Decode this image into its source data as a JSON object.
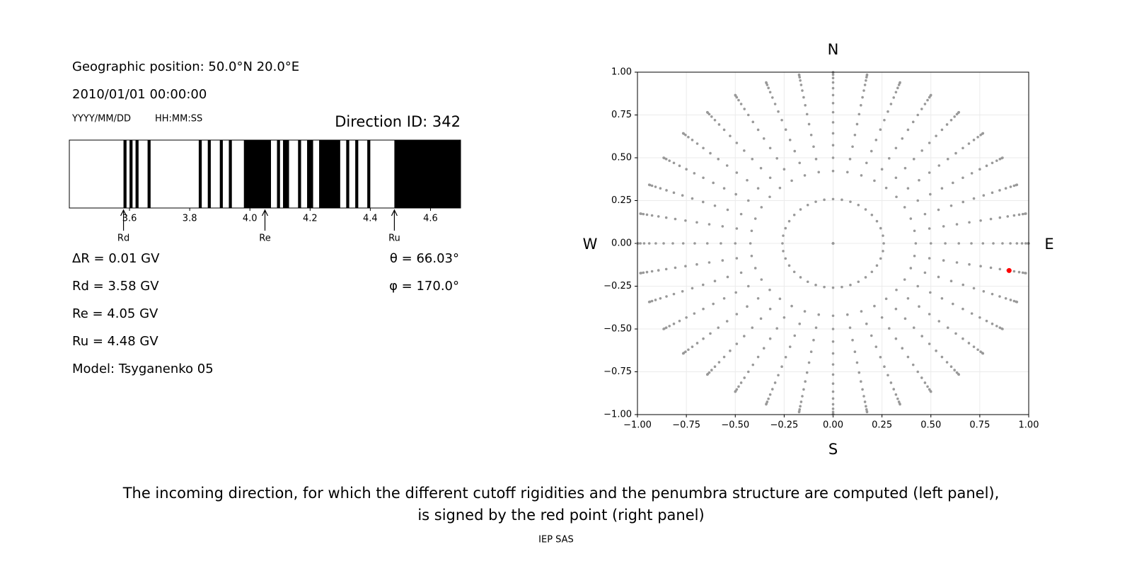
{
  "panel": {
    "position": "Geographic position: 50.0°N 20.0°E",
    "datetime": "2010/01/01 00:00:00",
    "date_format": "YYYY/MM/DD",
    "time_format": "HH:MM:SS",
    "direction_id": "Direction ID: 342",
    "lines": [
      "ΔR = 0.01 GV",
      "Rd = 3.58 GV",
      "Re = 4.05 GV",
      "Ru = 4.48 GV",
      "Model: Tsyganenko 05"
    ],
    "theta": "θ = 66.03°",
    "phi": "φ = 170.0°"
  },
  "chart_data": [
    {
      "type": "penumbra",
      "color": "#000000",
      "xlim": [
        3.4,
        4.7
      ],
      "xticks": [
        3.6,
        3.8,
        {
          "value": 4,
          "label": "4.0"
        },
        4.2,
        4.4,
        4.6
      ],
      "segments": [
        [
          3.58,
          3.59
        ],
        [
          3.6,
          3.61
        ],
        [
          3.62,
          3.63
        ],
        [
          3.66,
          3.67
        ],
        [
          3.83,
          3.84
        ],
        [
          3.86,
          3.87
        ],
        [
          3.9,
          3.91
        ],
        [
          3.93,
          3.94
        ],
        [
          3.98,
          4.07
        ],
        [
          4.09,
          4.1
        ],
        [
          4.11,
          4.13
        ],
        [
          4.16,
          4.17
        ],
        [
          4.19,
          4.21
        ],
        [
          4.23,
          4.3
        ],
        [
          4.32,
          4.33
        ],
        [
          4.35,
          4.36
        ],
        [
          4.39,
          4.4
        ],
        [
          4.48,
          4.7
        ]
      ],
      "markers": [
        {
          "value": 3.58,
          "label": "Rd"
        },
        {
          "value": 4.05,
          "label": "Re"
        },
        {
          "value": 4.48,
          "label": "Ru"
        }
      ]
    },
    {
      "type": "sky",
      "color": "#999999",
      "grid": true,
      "xlim": [
        -1,
        1
      ],
      "ylim": [
        -1,
        1
      ],
      "xticks": [
        {
          "value": -1,
          "label": "−1.00"
        },
        {
          "value": -0.75,
          "label": "−0.75"
        },
        {
          "value": -0.5,
          "label": "−0.50"
        },
        {
          "value": -0.25,
          "label": "−0.25"
        },
        {
          "value": 0,
          "label": "0.00"
        },
        {
          "value": 0.25,
          "label": "0.25"
        },
        {
          "value": 0.5,
          "label": "0.50"
        },
        {
          "value": 0.75,
          "label": "0.75"
        },
        {
          "value": 1,
          "label": "1.00"
        }
      ],
      "yticks": [
        {
          "value": -1,
          "label": "−1.00"
        },
        {
          "value": -0.75,
          "label": "−0.75"
        },
        {
          "value": -0.5,
          "label": "−0.50"
        },
        {
          "value": -0.25,
          "label": "−0.25"
        },
        {
          "value": 0,
          "label": "0.00"
        },
        {
          "value": 0.25,
          "label": "0.25"
        },
        {
          "value": 0.5,
          "label": "0.50"
        },
        {
          "value": 0.75,
          "label": "0.75"
        },
        {
          "value": 1,
          "label": "1.00"
        }
      ],
      "azimuth": [
        0,
        10,
        20,
        30,
        40,
        50,
        60,
        70,
        80,
        90,
        100,
        110,
        120,
        130,
        140,
        150,
        160,
        170,
        180,
        190,
        200,
        210,
        220,
        230,
        240,
        250,
        260,
        270,
        280,
        290,
        300,
        310,
        320,
        330,
        340,
        350
      ],
      "zenith": [
        0,
        15,
        25,
        30,
        35,
        40,
        45,
        50,
        55,
        60,
        65,
        70,
        75,
        80,
        85,
        90
      ],
      "selected": {
        "zenith": 66.03,
        "azimuth": 170,
        "color": "#ff0000"
      },
      "north": "N",
      "south": "S",
      "west": "W",
      "east": "E"
    }
  ],
  "caption": [
    "The incoming direction, for which the different cutoff rigidities and the penumbra structure are computed (left panel),",
    "is signed by the red point (right panel)"
  ],
  "footer": "IEP SAS"
}
